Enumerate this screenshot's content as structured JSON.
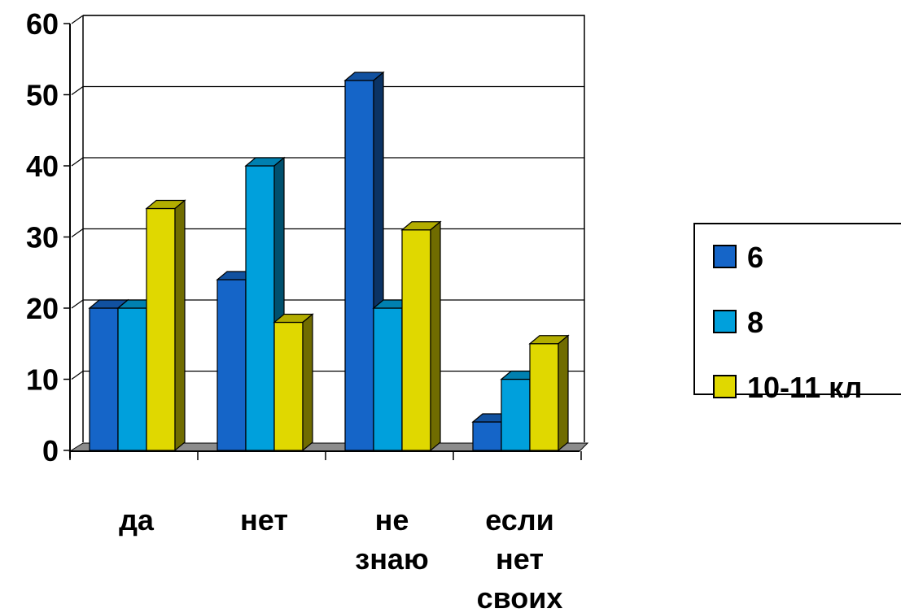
{
  "chart_data": {
    "type": "bar",
    "categories": [
      [
        "да"
      ],
      [
        "нет"
      ],
      [
        "не",
        "знаю"
      ],
      [
        "если",
        "нет",
        "своих"
      ]
    ],
    "series": [
      {
        "name": "6",
        "values": [
          20,
          24,
          52,
          4
        ],
        "color": "#1565C8"
      },
      {
        "name": "8",
        "values": [
          20,
          40,
          20,
          10
        ],
        "color": "#00A0DC"
      },
      {
        "name": "10-11 кл",
        "values": [
          34,
          18,
          31,
          15
        ],
        "color": "#E0D800"
      }
    ],
    "yticks": [
      "0",
      "10",
      "20",
      "30",
      "40",
      "50",
      "60"
    ],
    "ylim": [
      0,
      60
    ],
    "grid": true,
    "legend": "right",
    "floor_color": "#8C8C8C"
  }
}
